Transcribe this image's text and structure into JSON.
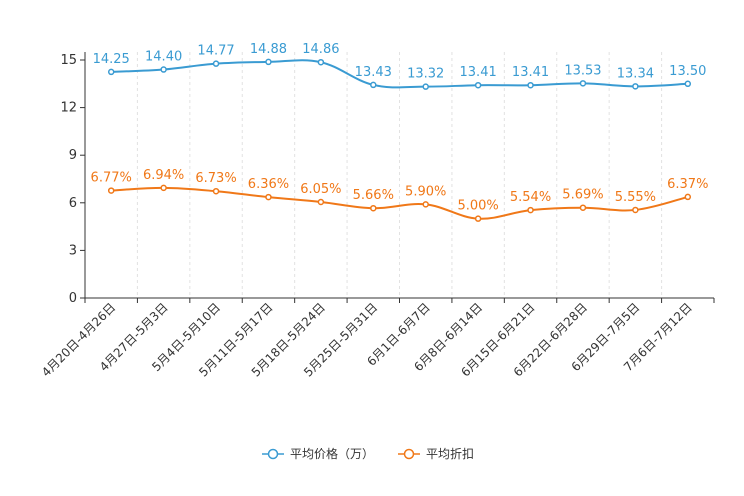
{
  "chart_data": {
    "type": "line",
    "categories": [
      "4月20日-4月26日",
      "4月27日-5月3日",
      "5月4日-5月10日",
      "5月11日-5月17日",
      "5月18日-5月24日",
      "5月25日-5月31日",
      "6月1日-6月7日",
      "6月8日-6月14日",
      "6月15日-6月21日",
      "6月22日-6月28日",
      "6月29日-7月5日",
      "7月6日-7月12日"
    ],
    "ylim": [
      0,
      15
    ],
    "yticks": [
      "0",
      "3",
      "6",
      "9",
      "12",
      "15"
    ],
    "grid": "vertical-dashed",
    "legend_position": "bottom",
    "series": [
      {
        "name": "平均价格（万）",
        "color": "#3a9bd2",
        "values": [
          14.25,
          14.4,
          14.77,
          14.88,
          14.86,
          13.43,
          13.32,
          13.41,
          13.41,
          13.53,
          13.34,
          13.5
        ],
        "labels": [
          "14.25",
          "14.40",
          "14.77",
          "14.88",
          "14.86",
          "13.43",
          "13.32",
          "13.41",
          "13.41",
          "13.53",
          "13.34",
          "13.50"
        ]
      },
      {
        "name": "平均折扣",
        "color": "#f07818",
        "values": [
          6.77,
          6.94,
          6.73,
          6.36,
          6.05,
          5.66,
          5.9,
          5.0,
          5.54,
          5.69,
          5.55,
          6.37
        ],
        "labels": [
          "6.77%",
          "6.94%",
          "6.73%",
          "6.36%",
          "6.05%",
          "5.66%",
          "5.90%",
          "5.00%",
          "5.54%",
          "5.69%",
          "5.55%",
          "6.37%"
        ]
      }
    ]
  }
}
